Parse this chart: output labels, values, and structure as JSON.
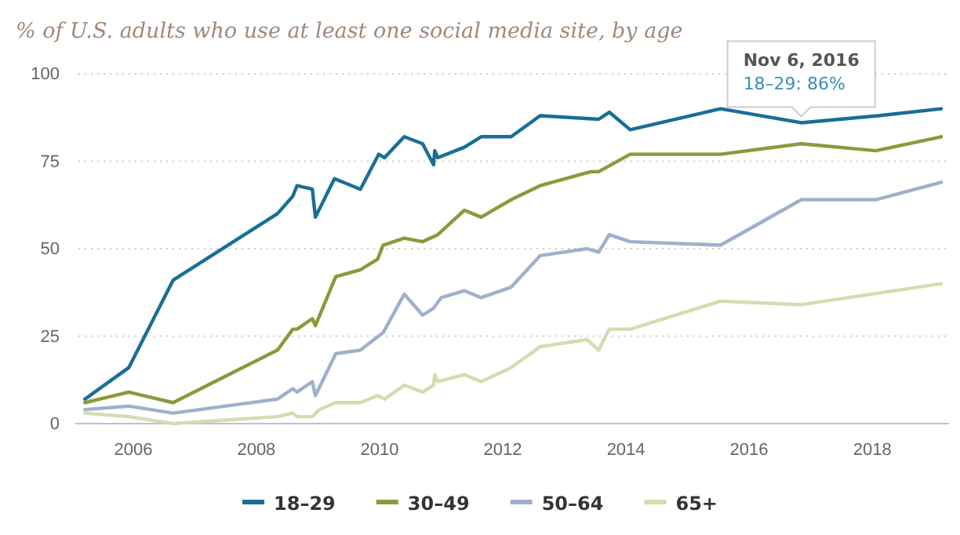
{
  "chart_data": {
    "type": "line",
    "title": "% of U.S. adults who use at least one social media site, by age",
    "xlim": [
      "2005-01-22",
      "2019-04-01"
    ],
    "xticks": [
      {
        "value": "2006-01-01",
        "label": "2006"
      },
      {
        "value": "2008-01-01",
        "label": "2008"
      },
      {
        "value": "2010-01-01",
        "label": "2010"
      },
      {
        "value": "2012-01-01",
        "label": "2012"
      },
      {
        "value": "2014-01-01",
        "label": "2014"
      },
      {
        "value": "2016-01-01",
        "label": "2016"
      },
      {
        "value": "2018-01-01",
        "label": "2018"
      }
    ],
    "ylim": [
      0,
      100
    ],
    "yticks": [
      0,
      25,
      50,
      75,
      100
    ],
    "grid": "y",
    "legend": "bottom",
    "marker": "none",
    "line_style": "solid",
    "series": [
      {
        "name": "18–29",
        "color": "#1a6e96",
        "x": [
          "2005-03-20",
          "2005-12-05",
          "2006-08-25",
          "2008-05-05",
          "2008-08-04",
          "2008-08-29",
          "2008-11-28",
          "2008-12-16",
          "2009-04-08",
          "2009-09-09",
          "2009-12-27",
          "2010-01-30",
          "2010-05-27",
          "2010-09-13",
          "2010-11-17",
          "2010-11-24",
          "2010-12-12",
          "2011-05-19",
          "2011-08-26",
          "2012-02-20",
          "2012-08-10",
          "2013-07-23",
          "2013-09-24",
          "2014-01-26",
          "2015-07-16",
          "2016-11-06",
          "2018-02-06",
          "2019-02-14"
        ],
        "values": [
          7,
          16,
          41,
          60,
          65,
          68,
          67,
          59,
          70,
          67,
          77,
          76,
          82,
          80,
          74,
          78,
          76,
          79,
          82,
          82,
          88,
          87,
          89,
          84,
          90,
          86,
          88,
          90
        ]
      },
      {
        "name": "30–49",
        "color": "#8a9a3b",
        "x": [
          "2005-03-20",
          "2005-12-05",
          "2006-08-25",
          "2008-05-05",
          "2008-08-04",
          "2008-08-29",
          "2008-11-28",
          "2008-12-16",
          "2009-04-16",
          "2009-09-09",
          "2009-12-20",
          "2010-01-22",
          "2010-05-27",
          "2010-09-13",
          "2010-12-12",
          "2011-05-19",
          "2011-08-26",
          "2012-02-20",
          "2012-08-10",
          "2013-06-06",
          "2013-07-23",
          "2014-01-26",
          "2015-07-16",
          "2016-11-06",
          "2018-01-22",
          "2019-02-14"
        ],
        "values": [
          6,
          9,
          6,
          21,
          27,
          27,
          30,
          28,
          42,
          44,
          47,
          51,
          53,
          52,
          54,
          61,
          59,
          64,
          68,
          72,
          72,
          77,
          77,
          80,
          78,
          82
        ]
      },
      {
        "name": "50–64",
        "color": "#9fb0cc",
        "x": [
          "2005-03-20",
          "2005-12-05",
          "2006-08-25",
          "2008-05-05",
          "2008-08-04",
          "2008-08-29",
          "2008-11-28",
          "2008-12-16",
          "2009-04-16",
          "2009-09-09",
          "2010-01-22",
          "2010-05-27",
          "2010-09-13",
          "2010-11-17",
          "2011-01-01",
          "2011-05-19",
          "2011-08-26",
          "2012-02-20",
          "2012-08-10",
          "2013-05-15",
          "2013-07-23",
          "2013-09-24",
          "2014-01-26",
          "2015-07-16",
          "2016-11-06",
          "2018-01-22",
          "2019-02-14"
        ],
        "values": [
          4,
          5,
          3,
          7,
          10,
          9,
          12,
          8,
          20,
          21,
          26,
          37,
          31,
          33,
          36,
          38,
          36,
          39,
          48,
          50,
          49,
          54,
          52,
          51,
          64,
          64,
          69
        ]
      },
      {
        "name": "65+",
        "color": "#d4dcb0",
        "x": [
          "2005-03-20",
          "2005-12-05",
          "2006-08-25",
          "2008-05-05",
          "2008-08-04",
          "2008-08-29",
          "2008-11-28",
          "2009-01-08",
          "2009-04-16",
          "2009-09-09",
          "2009-12-20",
          "2010-01-30",
          "2010-05-27",
          "2010-09-13",
          "2010-11-17",
          "2010-11-24",
          "2010-12-12",
          "2011-05-19",
          "2011-08-26",
          "2012-02-20",
          "2012-08-10",
          "2013-05-15",
          "2013-07-23",
          "2013-09-24",
          "2014-01-26",
          "2015-07-16",
          "2016-11-06",
          "2019-02-14"
        ],
        "values": [
          3,
          2,
          0,
          2,
          3,
          2,
          2,
          4,
          6,
          6,
          8,
          7,
          11,
          9,
          11,
          14,
          12,
          14,
          12,
          16,
          22,
          24,
          21,
          27,
          27,
          35,
          34,
          40
        ]
      }
    ],
    "annotations": [
      {
        "text": "Nov 6, 2016",
        "x": "2016-11-06",
        "y": 86
      },
      "18–29: 86%"
    ]
  }
}
